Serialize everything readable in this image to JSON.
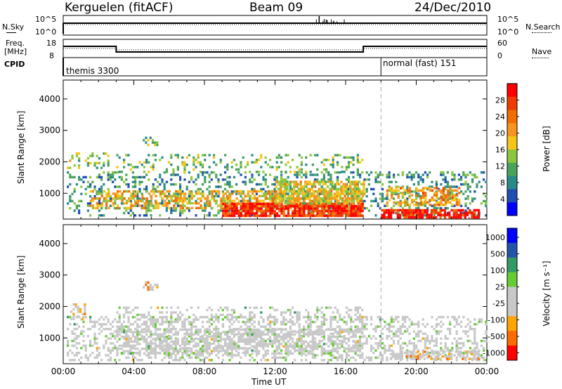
{
  "header": {
    "station": "Kerguelen (fitACF)",
    "beam": "Beam 09",
    "date": "24/Dec/2010"
  },
  "noise_panel": {
    "left_label": "N.Sky",
    "left_ticks": [
      "10^5",
      "10^0"
    ],
    "right_ticks": [
      "10^5",
      "10^0"
    ],
    "right_label": "N.Search"
  },
  "freq_panel": {
    "left_label_1": "Freq.",
    "left_label_2": "[MHz]",
    "left_ticks": [
      "18",
      "8"
    ],
    "right_ticks": [
      "60",
      "0"
    ],
    "right_label": "Nave"
  },
  "cpid": {
    "label": "CPID",
    "mode_1": "themis 3300",
    "mode_2": "normal (fast) 151"
  },
  "time_axis": {
    "ticks": [
      "00:00",
      "04:00",
      "08:00",
      "12:00",
      "16:00",
      "20:00",
      "00:00"
    ],
    "title": "Time UT"
  },
  "chart_data": [
    {
      "type": "heatmap",
      "panel": "power",
      "ylabel": "Slant Range [km]",
      "yticks": [
        "1000",
        "2000",
        "3000",
        "4000"
      ],
      "ylim": [
        180,
        4600
      ],
      "xlim_hours": [
        0,
        24
      ],
      "colorbar": {
        "label": "Power [dB]",
        "ticks": [
          "28",
          "24",
          "20",
          "16",
          "12",
          "8",
          "4"
        ],
        "range": [
          0,
          30
        ]
      },
      "scatter_regions": [
        {
          "t0": 0.2,
          "t1": 24,
          "r0": 300,
          "r1": 1700,
          "level": 0.3,
          "density": 0.28
        },
        {
          "t0": 1.5,
          "t1": 17,
          "r0": 500,
          "r1": 1100,
          "level": 0.6,
          "density": 0.5
        },
        {
          "t0": 9,
          "t1": 17,
          "r0": 250,
          "r1": 700,
          "level": 0.9,
          "density": 0.85
        },
        {
          "t0": 12,
          "t1": 17,
          "r0": 700,
          "r1": 1400,
          "level": 0.55,
          "density": 0.65
        },
        {
          "t0": 18,
          "t1": 23.5,
          "r0": 250,
          "r1": 500,
          "level": 0.92,
          "density": 0.8
        },
        {
          "t0": 18.3,
          "t1": 22.5,
          "r0": 600,
          "r1": 1200,
          "level": 0.65,
          "density": 0.55
        },
        {
          "t0": 3,
          "t1": 17,
          "r0": 1650,
          "r1": 2250,
          "level": 0.4,
          "density": 0.2
        },
        {
          "t0": 4.5,
          "t1": 5.3,
          "r0": 2500,
          "r1": 2800,
          "level": 0.4,
          "density": 0.6
        },
        {
          "t0": 0.2,
          "t1": 2.5,
          "r0": 1800,
          "r1": 2300,
          "level": 0.45,
          "density": 0.3
        }
      ]
    },
    {
      "type": "heatmap",
      "panel": "velocity",
      "ylabel": "Slant Range [km]",
      "yticks": [
        "1000",
        "2000",
        "3000",
        "4000"
      ],
      "ylim": [
        180,
        4600
      ],
      "xlim_hours": [
        0,
        24
      ],
      "colorbar": {
        "label": "Velocity [m s⁻¹]",
        "ticks": [
          "1000",
          "500",
          "100",
          "25",
          "-25",
          "-100",
          "-500",
          "-1000"
        ],
        "range": [
          -1000,
          1000
        ]
      },
      "scatter_regions": [
        {
          "t0": 0.2,
          "t1": 24,
          "r0": 300,
          "r1": 1700,
          "level": 0.5,
          "density": 0.35
        },
        {
          "t0": 3,
          "t1": 17,
          "r0": 500,
          "r1": 1300,
          "level": 0.5,
          "density": 0.55
        },
        {
          "t0": 3,
          "t1": 17,
          "r0": 1500,
          "r1": 2000,
          "level": 0.5,
          "density": 0.3
        },
        {
          "t0": 18.5,
          "t1": 23.5,
          "r0": 300,
          "r1": 600,
          "level": 0.3,
          "density": 0.6
        },
        {
          "t0": 4.5,
          "t1": 5.3,
          "r0": 2500,
          "r1": 2800,
          "level": 0.3,
          "density": 0.6
        },
        {
          "t0": 0.4,
          "t1": 1.2,
          "r0": 1600,
          "r1": 2100,
          "level": 0.3,
          "density": 0.4
        }
      ]
    }
  ]
}
